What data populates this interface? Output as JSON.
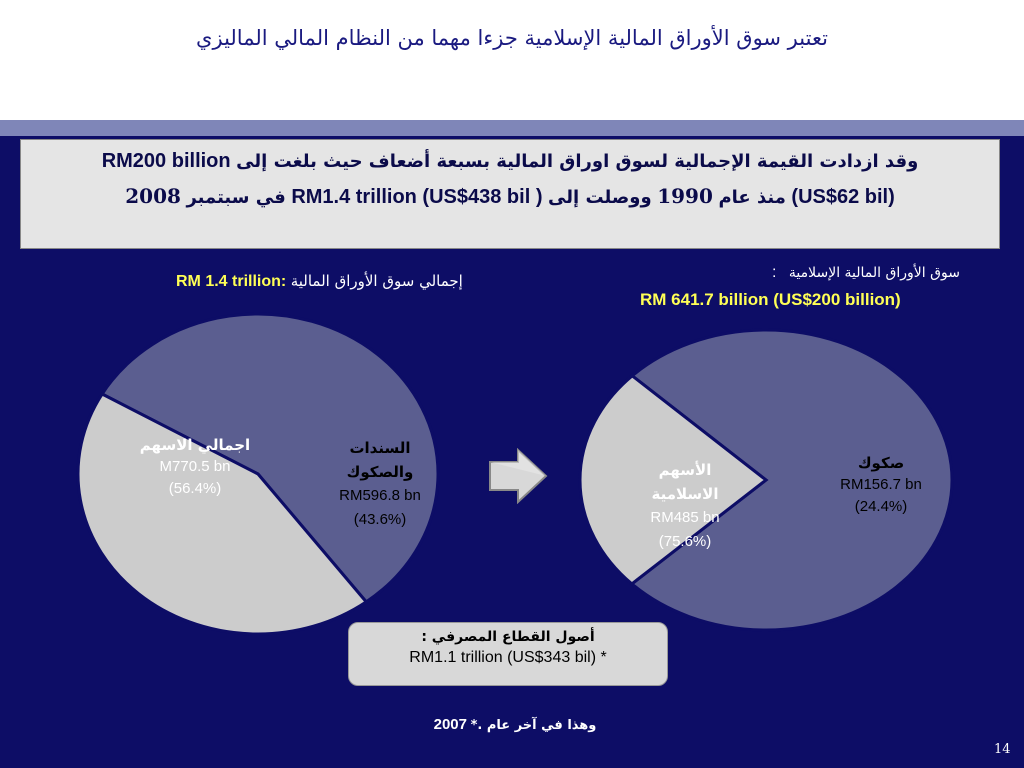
{
  "title": "تعتبر سوق الأوراق المالية الإسلامية جزءا مهما من النظام المالي الماليزي",
  "highlight_box": {
    "line1_prefix": "RM200 billion",
    "line1_arabic": "وقد ازدادت القيمة الإجمالية لسوق اوراق المالية بسبعة أضعاف حيث بلغت إلى",
    "line2_year_end": "2008",
    "line2_sept": "في سبتمبر",
    "line2_amount": "RM1.4 trillion (US$438 bil )",
    "line2_reached": "ووصلت إلى",
    "line2_year_start": "1990",
    "line2_since": "منذ عام",
    "line2_start_amount": "(US$62 bil)"
  },
  "left_chart_caption": {
    "value": "RM 1.4 trillion:",
    "label": "إجمالي سوق الأوراق المالية"
  },
  "right_chart_caption": {
    "label": "سوق الأوراق المالية الإسلامية",
    "colon": ":",
    "value": "RM 641.7 billion (US$200 billion)"
  },
  "arrow_icon": "right-arrow-icon",
  "bank_box": {
    "label": "أصول القطاع المصرفي :",
    "value": "RM1.1 trillion (US$343 bil) *"
  },
  "footnote": {
    "text": "وهذا في آخر عام .*",
    "year": "2007"
  },
  "page_number": "14",
  "colors": {
    "background": "#0d0d66",
    "band": "#7f86b8",
    "slice_dark": "#5b5e90",
    "slice_light": "#cccccc",
    "highlight_text": "#ffff55"
  },
  "chart_data": [
    {
      "type": "pie",
      "slices": [
        {
          "name": "اجمالي الاسهم",
          "amount": "M770.5 bn",
          "percent_label": "(56.4%)",
          "value": 56.4,
          "color": "#5b5e90"
        },
        {
          "name": "السندات والصكوك",
          "name_line1": "السندات",
          "name_line2": "والصكوك",
          "amount": "RM596.8 bn",
          "percent_label": "(43.6%)",
          "value": 43.6,
          "color": "#cccccc"
        }
      ]
    },
    {
      "type": "pie",
      "slices": [
        {
          "name": "الأسهم الاسلامية",
          "name_line1": "الأسهم",
          "name_line2": "الاسلامية",
          "amount": "RM485 bn",
          "percent_label": "(75.6%)",
          "value": 75.6,
          "color": "#5b5e90"
        },
        {
          "name": "صكوك",
          "amount": "RM156.7 bn",
          "percent_label": "(24.4%)",
          "value": 24.4,
          "color": "#cccccc"
        }
      ]
    }
  ]
}
